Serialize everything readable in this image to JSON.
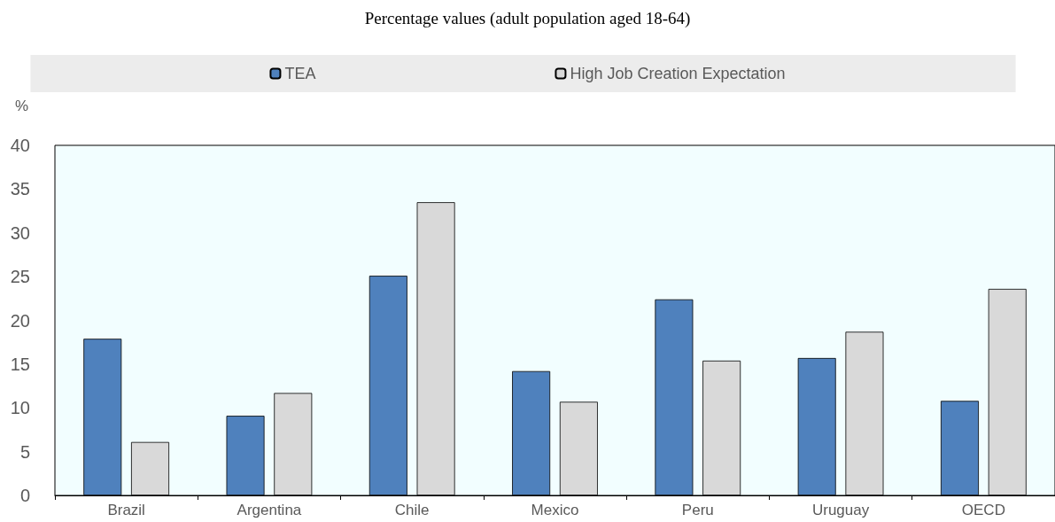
{
  "chart_data": {
    "type": "bar",
    "title": "Percentage values (adult population aged 18-64)",
    "ylabel": "%",
    "categories": [
      "Brazil",
      "Argentina",
      "Chile",
      "Mexico",
      "Peru",
      "Uruguay",
      "OECD"
    ],
    "series": [
      {
        "name": "TEA",
        "color": "#4f81bd",
        "values": [
          17.9,
          9.1,
          25.1,
          14.2,
          22.4,
          15.7,
          10.8
        ]
      },
      {
        "name": "High Job Creation Expectation",
        "color": "#d9d9d9",
        "values": [
          6.1,
          11.7,
          33.5,
          10.7,
          15.4,
          18.7,
          23.6
        ]
      }
    ],
    "ylim": [
      0,
      40
    ],
    "yticks": [
      0,
      5,
      10,
      15,
      20,
      25,
      30,
      35,
      40
    ],
    "grid": false,
    "legend": "top"
  }
}
